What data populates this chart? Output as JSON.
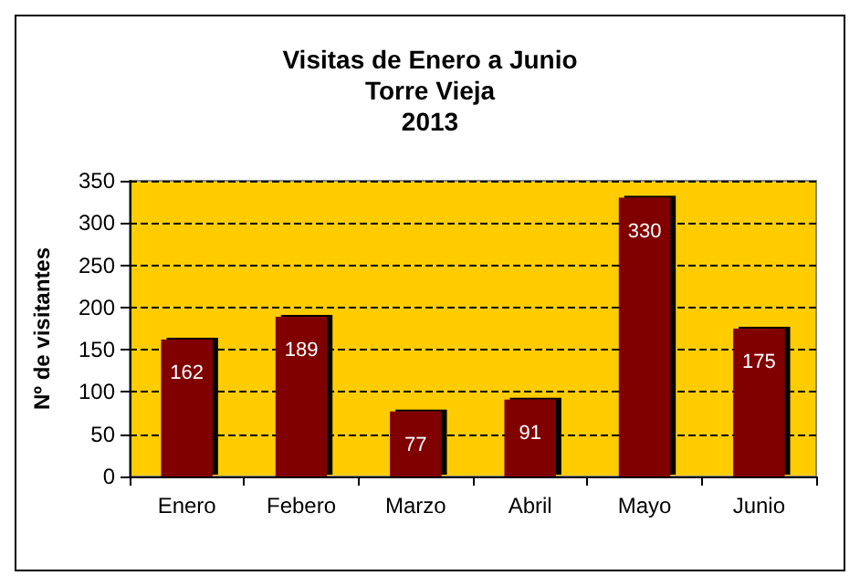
{
  "chart_data": {
    "type": "bar",
    "title": "Visitas de Enero a Junio\nTorre Vieja\n2013",
    "ylabel": "Nº de visitantes",
    "categories": [
      "Enero",
      "Febero",
      "Marzo",
      "Abril",
      "Mayo",
      "Junio"
    ],
    "values": [
      162,
      189,
      77,
      91,
      330,
      175
    ],
    "color": "#800000",
    "ylim": [
      0,
      350
    ],
    "yticks": [
      0,
      50,
      100,
      150,
      200,
      250,
      300,
      350
    ],
    "grid": "y",
    "data_labels": true
  }
}
